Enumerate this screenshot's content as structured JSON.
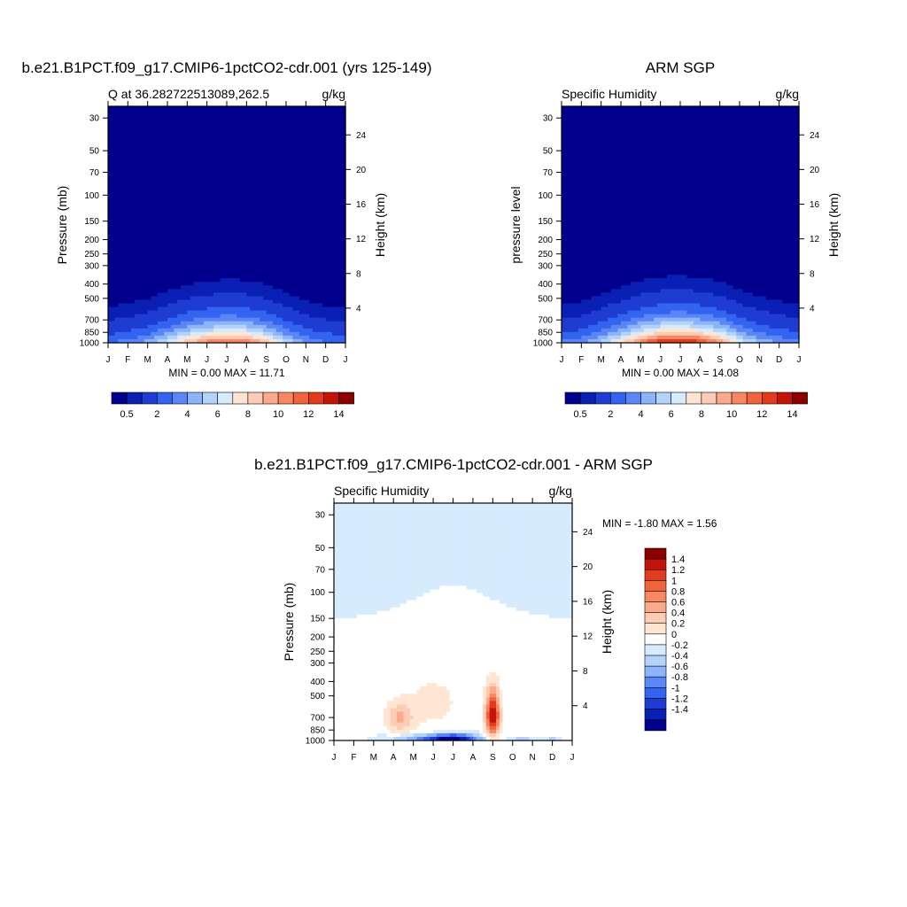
{
  "colors": {
    "abs_scale": [
      "#00008c",
      "#0a1fb4",
      "#1e3cd2",
      "#3264f0",
      "#5a87f5",
      "#8cb4fa",
      "#b4d2fa",
      "#d7ebff",
      "#ffe6d2",
      "#fccdb4",
      "#fcaa8c",
      "#fa8764",
      "#f0643c",
      "#e13c1e",
      "#c3140a",
      "#8c0000"
    ],
    "diff_scale": [
      "#00008c",
      "#0a1fb4",
      "#1e3cd2",
      "#3264f0",
      "#5a87f5",
      "#8cb4fa",
      "#b4d2fa",
      "#d7ebff",
      "#ffffff",
      "#ffe6d2",
      "#fccdb4",
      "#fcaa8c",
      "#fa8764",
      "#f0643c",
      "#e13c1e",
      "#c3140a",
      "#8c0000"
    ]
  },
  "chart_data": [
    {
      "type": "heatmap",
      "variable": "Q",
      "title": "b.e21.B1PCT.f09_g17.CMIP6-1pctCO2-cdr.001 (yrs 125-149)",
      "left_string": "Q at 36.282722513089,262.5",
      "right_string": "g/kg",
      "xlabel": "",
      "ylabel": "Pressure (mb)",
      "ylabel_right": "Height (km)",
      "x_ticks": [
        "J",
        "F",
        "M",
        "A",
        "M",
        "J",
        "J",
        "A",
        "S",
        "O",
        "N",
        "D",
        "J"
      ],
      "y_ticks": [
        30,
        50,
        70,
        100,
        150,
        200,
        250,
        300,
        400,
        500,
        700,
        850,
        1000
      ],
      "y_right_ticks": [
        4,
        8,
        12,
        16,
        20,
        24
      ],
      "ylim": [
        1000,
        25
      ],
      "y_scale": "log",
      "stats": "MIN =   0.00 MAX =  11.71",
      "min": 0.0,
      "max": 11.71,
      "colorbar_labels": [
        "0.5",
        "2",
        "4",
        "6",
        "8",
        "10",
        "12",
        "14"
      ],
      "colorbar_levels": [
        0.5,
        1,
        2,
        3,
        4,
        5,
        6,
        7,
        8,
        9,
        10,
        11,
        12,
        13,
        14
      ],
      "colorbar_orientation": "horizontal",
      "surface_q": [
        3.0,
        3.5,
        4.5,
        6.5,
        9.0,
        11.0,
        11.7,
        11.3,
        9.0,
        6.0,
        4.0,
        3.2,
        3.0
      ]
    },
    {
      "type": "heatmap",
      "variable": "Specific Humidity",
      "title": "ARM SGP",
      "left_string": "Specific Humidity",
      "right_string": "g/kg",
      "xlabel": "",
      "ylabel": "pressure level",
      "ylabel_right": "Height (km)",
      "x_ticks": [
        "J",
        "F",
        "M",
        "A",
        "M",
        "J",
        "J",
        "A",
        "S",
        "O",
        "N",
        "D",
        "J"
      ],
      "y_ticks": [
        30,
        50,
        70,
        100,
        150,
        200,
        250,
        300,
        400,
        500,
        700,
        850,
        1000
      ],
      "y_right_ticks": [
        4,
        8,
        12,
        16,
        20,
        24
      ],
      "ylim": [
        1000,
        25
      ],
      "y_scale": "log",
      "stats": "MIN =   0.00 MAX =  14.08",
      "min": 0.0,
      "max": 14.08,
      "colorbar_labels": [
        "0.5",
        "2",
        "4",
        "6",
        "8",
        "10",
        "12",
        "14"
      ],
      "colorbar_levels": [
        0.5,
        1,
        2,
        3,
        4,
        5,
        6,
        7,
        8,
        9,
        10,
        11,
        12,
        13,
        14
      ],
      "colorbar_orientation": "horizontal",
      "surface_q": [
        3.5,
        3.8,
        5.5,
        8.0,
        11.0,
        13.5,
        14.0,
        13.0,
        10.5,
        7.0,
        5.0,
        4.0,
        3.5
      ]
    },
    {
      "type": "heatmap",
      "variable": "Specific Humidity",
      "title": "b.e21.B1PCT.f09_g17.CMIP6-1pctCO2-cdr.001 - ARM SGP",
      "left_string": "Specific Humidity",
      "right_string": "g/kg",
      "xlabel": "",
      "ylabel": "Pressure (mb)",
      "ylabel_right": "Height (km)",
      "x_ticks": [
        "J",
        "F",
        "M",
        "A",
        "M",
        "J",
        "J",
        "A",
        "S",
        "O",
        "N",
        "D",
        "J"
      ],
      "y_ticks": [
        30,
        50,
        70,
        100,
        150,
        200,
        250,
        300,
        400,
        500,
        700,
        850,
        1000
      ],
      "y_right_ticks": [
        4,
        8,
        12,
        16,
        20,
        24
      ],
      "ylim": [
        1000,
        25
      ],
      "y_scale": "log",
      "stats": "MIN =  -1.80 MAX =   1.56",
      "min": -1.8,
      "max": 1.56,
      "colorbar_labels": [
        "1.4",
        "1.2",
        "1",
        "0.8",
        "0.6",
        "0.4",
        "0.2",
        "0",
        "-0.2",
        "-0.4",
        "-0.6",
        "-0.8",
        "-1",
        "-1.2",
        "-1.4"
      ],
      "colorbar_levels": [
        -1.4,
        -1.2,
        -1.0,
        -0.8,
        -0.6,
        -0.4,
        -0.2,
        0,
        0.2,
        0.4,
        0.6,
        0.8,
        1.0,
        1.2,
        1.4
      ],
      "colorbar_orientation": "vertical"
    }
  ]
}
